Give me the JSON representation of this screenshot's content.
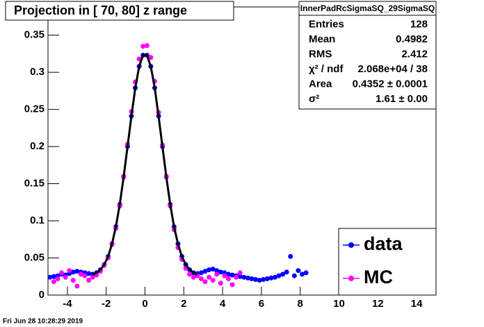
{
  "chart_data": {
    "type": "scatter",
    "title": "Projection in [  70,  80] z range",
    "xlim": [
      -5,
      15
    ],
    "ylim": [
      0,
      0.388
    ],
    "xticks": [
      -4,
      -2,
      0,
      2,
      4,
      6,
      8,
      10,
      12,
      14
    ],
    "yticks": [
      0,
      0.05,
      0.1,
      0.15,
      0.2,
      0.25,
      0.3,
      0.35
    ],
    "series": [
      {
        "name": "data",
        "color": "#0000ff",
        "x": [
          -4.9,
          -4.7,
          -4.5,
          -4.3,
          -4.1,
          -3.9,
          -3.7,
          -3.5,
          -3.3,
          -3.1,
          -2.9,
          -2.7,
          -2.5,
          -2.3,
          -2.1,
          -1.9,
          -1.7,
          -1.5,
          -1.3,
          -1.1,
          -0.9,
          -0.7,
          -0.5,
          -0.3,
          -0.1,
          0.1,
          0.3,
          0.5,
          0.7,
          0.9,
          1.1,
          1.3,
          1.5,
          1.7,
          1.9,
          2.1,
          2.3,
          2.5,
          2.7,
          2.9,
          3.1,
          3.3,
          3.5,
          3.7,
          3.9,
          4.1,
          4.3,
          4.5,
          4.7,
          4.9,
          5.1,
          5.3,
          5.5,
          5.7,
          5.9,
          6.1,
          6.3,
          6.5,
          6.7,
          6.9,
          7.1,
          7.3,
          7.5,
          7.7,
          7.9,
          8.1,
          8.3
        ],
        "values": [
          0.024,
          0.025,
          0.026,
          0.028,
          0.027,
          0.029,
          0.031,
          0.032,
          0.031,
          0.03,
          0.029,
          0.028,
          0.03,
          0.034,
          0.041,
          0.052,
          0.069,
          0.092,
          0.122,
          0.159,
          0.2,
          0.241,
          0.279,
          0.308,
          0.323,
          0.323,
          0.308,
          0.279,
          0.241,
          0.2,
          0.159,
          0.122,
          0.092,
          0.069,
          0.052,
          0.041,
          0.034,
          0.03,
          0.029,
          0.03,
          0.032,
          0.034,
          0.035,
          0.033,
          0.031,
          0.03,
          0.028,
          0.027,
          0.026,
          0.025,
          0.024,
          0.023,
          0.022,
          0.021,
          0.02,
          0.021,
          0.022,
          0.023,
          0.024,
          0.026,
          0.028,
          0.031,
          0.052,
          0.026,
          0.033,
          0.028,
          0.03
        ]
      },
      {
        "name": "MC",
        "color": "#ff00ff",
        "x": [
          -4.7,
          -4.5,
          -4.3,
          -4.1,
          -3.9,
          -3.7,
          -3.5,
          -3.3,
          -3.1,
          -2.9,
          -2.7,
          -2.5,
          -2.3,
          -2.1,
          -1.9,
          -1.7,
          -1.5,
          -1.3,
          -1.1,
          -0.9,
          -0.7,
          -0.5,
          -0.3,
          -0.1,
          0.1,
          0.3,
          0.5,
          0.7,
          0.9,
          1.1,
          1.3,
          1.5,
          1.7,
          1.9,
          2.1,
          2.3,
          2.5,
          2.7,
          2.9,
          3.1,
          3.3,
          3.5,
          3.7,
          3.9,
          4.1,
          4.3,
          4.5,
          4.7,
          4.9
        ],
        "values": [
          0.018,
          0.022,
          0.03,
          0.024,
          0.033,
          0.02,
          0.012,
          0.028,
          0.026,
          0.02,
          0.024,
          0.027,
          0.032,
          0.04,
          0.05,
          0.068,
          0.09,
          0.12,
          0.16,
          0.203,
          0.247,
          0.287,
          0.318,
          0.335,
          0.336,
          0.32,
          0.288,
          0.246,
          0.202,
          0.16,
          0.12,
          0.088,
          0.064,
          0.048,
          0.036,
          0.028,
          0.024,
          0.026,
          0.022,
          0.018,
          0.024,
          0.02,
          0.028,
          0.016,
          0.026,
          0.022,
          0.014,
          0.024,
          0.03
        ]
      }
    ],
    "fit": {
      "color": "#000000",
      "x": [
        -2.7,
        -2.5,
        -2.3,
        -2.1,
        -1.9,
        -1.7,
        -1.5,
        -1.3,
        -1.1,
        -0.9,
        -0.7,
        -0.5,
        -0.3,
        -0.1,
        0.1,
        0.3,
        0.5,
        0.7,
        0.9,
        1.1,
        1.3,
        1.5,
        1.7,
        1.9,
        2.1,
        2.3,
        2.5,
        2.7
      ],
      "values": [
        0.027,
        0.03,
        0.034,
        0.041,
        0.052,
        0.069,
        0.092,
        0.122,
        0.159,
        0.2,
        0.241,
        0.279,
        0.308,
        0.323,
        0.323,
        0.308,
        0.279,
        0.241,
        0.2,
        0.159,
        0.122,
        0.092,
        0.069,
        0.052,
        0.041,
        0.034,
        0.03,
        0.027
      ]
    },
    "legend": "bottom-right",
    "stats": {
      "title": "InnerPadRcSigmaSQ_29SigmaSQ",
      "rows": [
        [
          "Entries",
          "128"
        ],
        [
          "Mean",
          "0.4982"
        ],
        [
          "RMS",
          "2.412"
        ],
        [
          "χ² / ndf",
          "2.068e+04 / 38"
        ],
        [
          "Area",
          "0.4352 ± 0.0001"
        ],
        [
          "σ²",
          "1.61 ± 0.00"
        ]
      ]
    },
    "timestamp": "Fri Jun 28 10:28:29 2019"
  }
}
